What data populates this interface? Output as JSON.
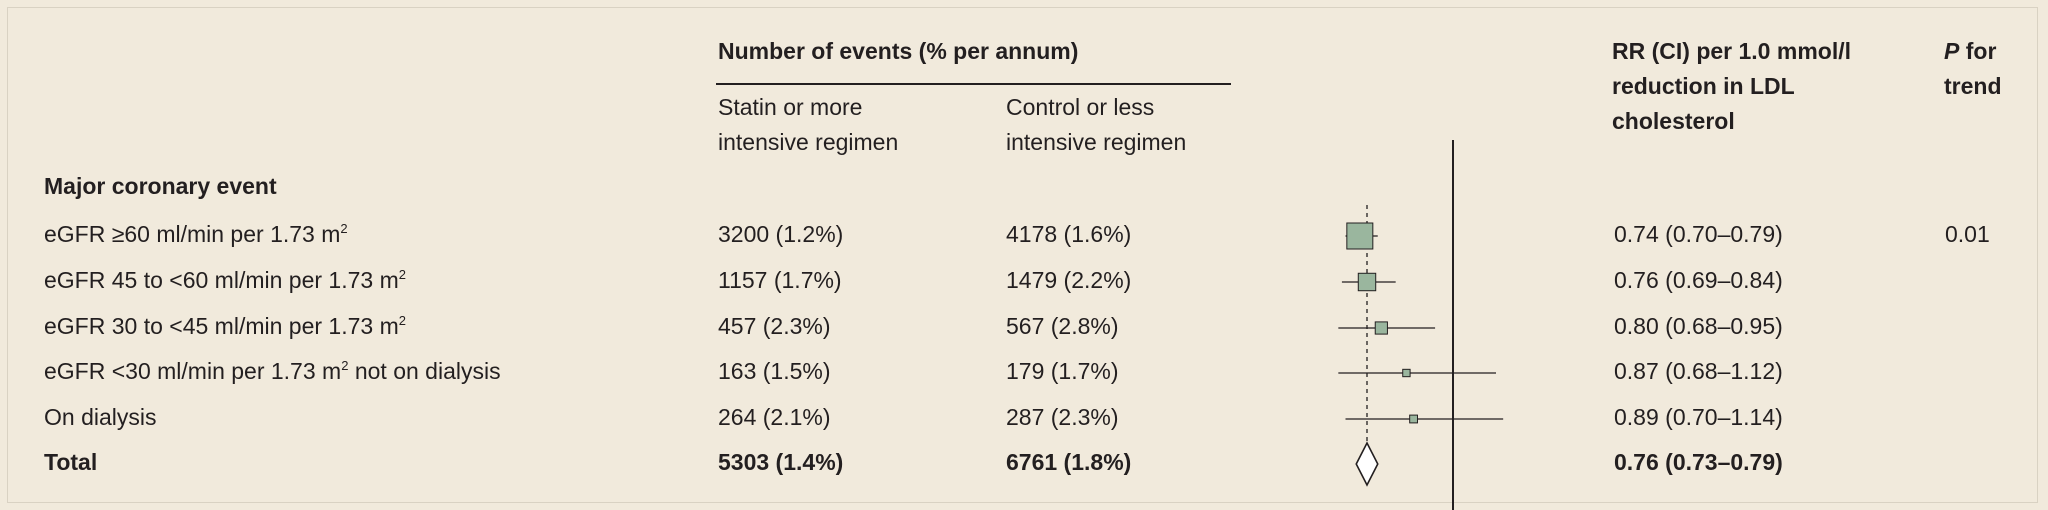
{
  "header": {
    "events_group": "Number of events (% per annum)",
    "treat_col": [
      "Statin or more",
      "intensive regimen"
    ],
    "control_col": [
      "Control or less",
      "intensive regimen"
    ],
    "rr_col": [
      "RR (CI) per 1.0 mmol/l",
      "reduction in LDL",
      "cholesterol"
    ],
    "p_col": [
      "P",
      " for",
      "trend"
    ]
  },
  "section_title": "Major coronary event",
  "rows": [
    {
      "label": "eGFR ≥60 ml/min per 1.73 m",
      "sup": "2",
      "label_tail": "",
      "treat": "3200 (1.2%)",
      "control": "4178 (1.6%)",
      "rr_text": "0.74 (0.70–0.79)",
      "p": "0.01"
    },
    {
      "label": "eGFR 45 to <60 ml/min per 1.73 m",
      "sup": "2",
      "label_tail": "",
      "treat": "1157 (1.7%)",
      "control": "1479 (2.2%)",
      "rr_text": "0.76 (0.69–0.84)",
      "p": ""
    },
    {
      "label": "eGFR 30 to <45 ml/min per 1.73 m",
      "sup": "2",
      "label_tail": "",
      "treat": "457 (2.3%)",
      "control": "567 (2.8%)",
      "rr_text": "0.80 (0.68–0.95)",
      "p": ""
    },
    {
      "label": "eGFR <30 ml/min per 1.73 m",
      "sup": "2",
      "label_tail": " not on dialysis",
      "treat": "163 (1.5%)",
      "control": "179 (1.7%)",
      "rr_text": "0.87 (0.68–1.12)",
      "p": ""
    },
    {
      "label": "On dialysis",
      "sup": "",
      "label_tail": "",
      "treat": "264 (2.1%)",
      "control": "287 (2.3%)",
      "rr_text": "0.89 (0.70–1.14)",
      "p": ""
    }
  ],
  "total": {
    "label": "Total",
    "treat": "5303 (1.4%)",
    "control": "6761 (1.8%)",
    "rr_text": "0.76 (0.73–0.79)"
  },
  "chart_data": {
    "type": "forest",
    "null_value": 1.0,
    "overall_line": 0.76,
    "series": [
      {
        "rr": 0.74,
        "lo": 0.7,
        "hi": 0.79,
        "weight": 1.0
      },
      {
        "rr": 0.76,
        "lo": 0.69,
        "hi": 0.84,
        "weight": 0.45
      },
      {
        "rr": 0.8,
        "lo": 0.68,
        "hi": 0.95,
        "weight": 0.22
      },
      {
        "rr": 0.87,
        "lo": 0.68,
        "hi": 1.12,
        "weight": 0.08
      },
      {
        "rr": 0.89,
        "lo": 0.7,
        "hi": 1.14,
        "weight": 0.09
      }
    ],
    "total": {
      "rr": 0.76,
      "lo": 0.73,
      "hi": 0.79
    },
    "colors": {
      "square": "#9ab69e",
      "square_stroke": "#231f20",
      "line": "#231f20"
    }
  }
}
